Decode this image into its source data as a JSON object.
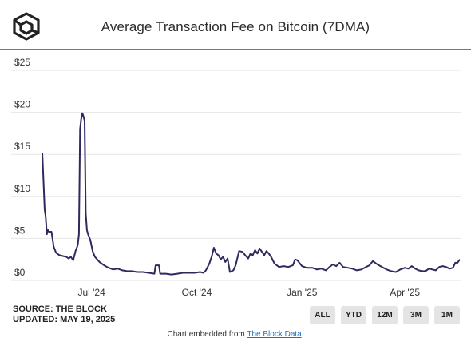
{
  "header": {
    "title": "Average Transaction Fee on Bitcoin (7DMA)",
    "logo_icon": "the-block-cube-logo"
  },
  "colors": {
    "line": "#2e2a5e",
    "accent_rule": "#b347d6",
    "grid": "#e6e6e6",
    "button_bg": "#e4e4e4",
    "link": "#1e73be"
  },
  "footer": {
    "source": "SOURCE: THE BLOCK",
    "updated": "UPDATED: MAY 19, 2025",
    "buttons": [
      "ALL",
      "YTD",
      "12M",
      "3M",
      "1M"
    ],
    "embed_prefix": "Chart embedded from ",
    "embed_link": "The Block Data",
    "embed_suffix": "."
  },
  "chart_data": {
    "type": "line",
    "title": "Average Transaction Fee on Bitcoin (7DMA)",
    "xlabel": "",
    "ylabel": "",
    "ylim": [
      0,
      25
    ],
    "xlim": [
      "2024-05-19",
      "2025-05-19"
    ],
    "y_ticks": [
      {
        "value": 0,
        "label": "$0"
      },
      {
        "value": 5,
        "label": "$5"
      },
      {
        "value": 10,
        "label": "$10"
      },
      {
        "value": 15,
        "label": "$15"
      },
      {
        "value": 20,
        "label": "$20"
      },
      {
        "value": 25,
        "label": "$25"
      }
    ],
    "x_ticks": [
      {
        "date": "2024-07-01",
        "label": "Jul '24"
      },
      {
        "date": "2024-10-01",
        "label": "Oct '24"
      },
      {
        "date": "2025-01-01",
        "label": "Jan '25"
      },
      {
        "date": "2025-04-01",
        "label": "Apr '25"
      }
    ],
    "grid": true,
    "legend": "none",
    "series": [
      {
        "points": [
          [
            "2024-05-19",
            15.2
          ],
          [
            "2024-05-20",
            12.0
          ],
          [
            "2024-05-21",
            8.5
          ],
          [
            "2024-05-22",
            7.5
          ],
          [
            "2024-05-23",
            5.5
          ],
          [
            "2024-05-24",
            6.0
          ],
          [
            "2024-05-25",
            5.8
          ],
          [
            "2024-05-27",
            5.8
          ],
          [
            "2024-05-29",
            4.0
          ],
          [
            "2024-05-31",
            3.3
          ],
          [
            "2024-06-03",
            3.0
          ],
          [
            "2024-06-06",
            2.9
          ],
          [
            "2024-06-09",
            2.8
          ],
          [
            "2024-06-11",
            2.6
          ],
          [
            "2024-06-13",
            2.8
          ],
          [
            "2024-06-15",
            2.4
          ],
          [
            "2024-06-17",
            3.5
          ],
          [
            "2024-06-19",
            4.2
          ],
          [
            "2024-06-20",
            5.5
          ],
          [
            "2024-06-21",
            18.0
          ],
          [
            "2024-06-22",
            19.2
          ],
          [
            "2024-06-23",
            19.9
          ],
          [
            "2024-06-24",
            19.5
          ],
          [
            "2024-06-25",
            19.0
          ],
          [
            "2024-06-26",
            8.0
          ],
          [
            "2024-06-27",
            6.0
          ],
          [
            "2024-06-28",
            5.5
          ],
          [
            "2024-06-30",
            4.8
          ],
          [
            "2024-07-02",
            3.5
          ],
          [
            "2024-07-04",
            2.8
          ],
          [
            "2024-07-08",
            2.2
          ],
          [
            "2024-07-12",
            1.8
          ],
          [
            "2024-07-16",
            1.5
          ],
          [
            "2024-07-20",
            1.3
          ],
          [
            "2024-07-24",
            1.4
          ],
          [
            "2024-07-28",
            1.2
          ],
          [
            "2024-08-01",
            1.1
          ],
          [
            "2024-08-05",
            1.1
          ],
          [
            "2024-08-10",
            1.0
          ],
          [
            "2024-08-15",
            1.0
          ],
          [
            "2024-08-20",
            0.9
          ],
          [
            "2024-08-25",
            0.8
          ],
          [
            "2024-08-26",
            1.8
          ],
          [
            "2024-08-29",
            1.8
          ],
          [
            "2024-08-30",
            0.8
          ],
          [
            "2024-09-04",
            0.8
          ],
          [
            "2024-09-09",
            0.7
          ],
          [
            "2024-09-14",
            0.8
          ],
          [
            "2024-09-19",
            0.9
          ],
          [
            "2024-09-24",
            0.9
          ],
          [
            "2024-09-29",
            0.9
          ],
          [
            "2024-10-04",
            1.0
          ],
          [
            "2024-10-07",
            0.9
          ],
          [
            "2024-10-09",
            1.2
          ],
          [
            "2024-10-12",
            2.0
          ],
          [
            "2024-10-14",
            2.8
          ],
          [
            "2024-10-16",
            3.9
          ],
          [
            "2024-10-18",
            3.2
          ],
          [
            "2024-10-20",
            3.0
          ],
          [
            "2024-10-22",
            2.5
          ],
          [
            "2024-10-24",
            2.8
          ],
          [
            "2024-10-26",
            2.2
          ],
          [
            "2024-10-28",
            2.6
          ],
          [
            "2024-10-30",
            1.0
          ],
          [
            "2024-11-02",
            1.2
          ],
          [
            "2024-11-04",
            1.8
          ],
          [
            "2024-11-07",
            3.5
          ],
          [
            "2024-11-10",
            3.4
          ],
          [
            "2024-11-13",
            2.9
          ],
          [
            "2024-11-15",
            2.6
          ],
          [
            "2024-11-17",
            3.2
          ],
          [
            "2024-11-19",
            3.0
          ],
          [
            "2024-11-21",
            3.6
          ],
          [
            "2024-11-23",
            3.2
          ],
          [
            "2024-11-25",
            3.8
          ],
          [
            "2024-11-27",
            3.4
          ],
          [
            "2024-11-29",
            3.0
          ],
          [
            "2024-12-01",
            3.5
          ],
          [
            "2024-12-03",
            3.2
          ],
          [
            "2024-12-05",
            2.8
          ],
          [
            "2024-12-08",
            2.0
          ],
          [
            "2024-12-12",
            1.6
          ],
          [
            "2024-12-16",
            1.7
          ],
          [
            "2024-12-20",
            1.6
          ],
          [
            "2024-12-24",
            1.8
          ],
          [
            "2024-12-26",
            2.5
          ],
          [
            "2024-12-28",
            2.4
          ],
          [
            "2025-01-01",
            1.7
          ],
          [
            "2025-01-05",
            1.5
          ],
          [
            "2025-01-10",
            1.5
          ],
          [
            "2025-01-14",
            1.3
          ],
          [
            "2025-01-18",
            1.4
          ],
          [
            "2025-01-22",
            1.2
          ],
          [
            "2025-01-25",
            1.6
          ],
          [
            "2025-01-28",
            1.9
          ],
          [
            "2025-01-31",
            1.7
          ],
          [
            "2025-02-03",
            2.1
          ],
          [
            "2025-02-06",
            1.6
          ],
          [
            "2025-02-10",
            1.5
          ],
          [
            "2025-02-14",
            1.4
          ],
          [
            "2025-02-18",
            1.2
          ],
          [
            "2025-02-22",
            1.3
          ],
          [
            "2025-02-26",
            1.6
          ],
          [
            "2025-03-01",
            1.8
          ],
          [
            "2025-03-04",
            2.3
          ],
          [
            "2025-03-08",
            1.9
          ],
          [
            "2025-03-12",
            1.6
          ],
          [
            "2025-03-16",
            1.3
          ],
          [
            "2025-03-20",
            1.1
          ],
          [
            "2025-03-24",
            1.0
          ],
          [
            "2025-03-28",
            1.3
          ],
          [
            "2025-04-01",
            1.5
          ],
          [
            "2025-04-04",
            1.4
          ],
          [
            "2025-04-07",
            1.7
          ],
          [
            "2025-04-10",
            1.4
          ],
          [
            "2025-04-13",
            1.2
          ],
          [
            "2025-04-16",
            1.1
          ],
          [
            "2025-04-19",
            1.1
          ],
          [
            "2025-04-22",
            1.4
          ],
          [
            "2025-04-25",
            1.3
          ],
          [
            "2025-04-28",
            1.2
          ],
          [
            "2025-05-01",
            1.6
          ],
          [
            "2025-05-04",
            1.7
          ],
          [
            "2025-05-07",
            1.6
          ],
          [
            "2025-05-10",
            1.4
          ],
          [
            "2025-05-13",
            1.5
          ],
          [
            "2025-05-15",
            2.1
          ],
          [
            "2025-05-17",
            2.1
          ],
          [
            "2025-05-19",
            2.5
          ]
        ]
      }
    ]
  }
}
